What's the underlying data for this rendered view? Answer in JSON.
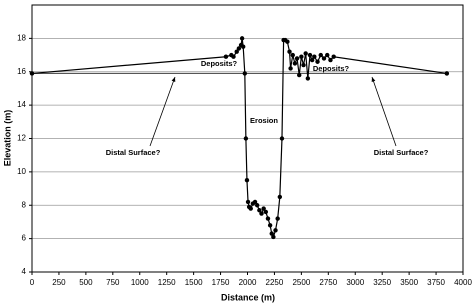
{
  "chart_data": {
    "type": "line",
    "x_label": "Distance (m)",
    "y_label": "Elevation (m)",
    "xlim": [
      0,
      4000
    ],
    "xticks": [
      0,
      250,
      500,
      750,
      1000,
      1250,
      1500,
      1750,
      2000,
      2250,
      2500,
      2750,
      3000,
      3250,
      3500,
      3750,
      4000
    ],
    "ylim": [
      4,
      20
    ],
    "yticks": [
      4,
      6,
      8,
      10,
      12,
      14,
      16,
      18
    ],
    "grid": true,
    "series": [
      {
        "color": "#000000",
        "x": [
          0,
          1800,
          1850,
          1870,
          1900,
          1920,
          1940,
          1950,
          1960,
          1975,
          1985,
          1995,
          2005,
          2015,
          2030,
          2050,
          2070,
          2090,
          2110,
          2130,
          2150,
          2170,
          2190,
          2210,
          2225,
          2240,
          2260,
          2280,
          2300,
          2320,
          2335,
          2350,
          2370,
          2390,
          2400,
          2420,
          2440,
          2460,
          2480,
          2500,
          2520,
          2540,
          2560,
          2580,
          2600,
          2620,
          2650,
          2680,
          2710,
          2740,
          2770,
          2800,
          3850
        ],
        "values": [
          15.9,
          16.9,
          17.0,
          16.9,
          17.2,
          17.4,
          17.6,
          18.0,
          17.5,
          15.9,
          12.0,
          9.5,
          8.2,
          7.9,
          7.8,
          8.1,
          8.2,
          8.0,
          7.7,
          7.5,
          7.8,
          7.6,
          7.2,
          6.8,
          6.3,
          6.1,
          6.5,
          7.2,
          8.5,
          12.0,
          17.9,
          17.9,
          17.8,
          17.2,
          16.2,
          17.0,
          16.5,
          16.8,
          15.8,
          16.9,
          16.4,
          17.1,
          15.6,
          17.0,
          16.7,
          16.9,
          16.6,
          17.0,
          16.8,
          17.0,
          16.7,
          16.9,
          15.9
        ]
      },
      {
        "color": "#555555",
        "x": [
          0,
          3850
        ],
        "values": [
          15.9,
          15.9
        ]
      }
    ],
    "annotations": [
      "Deposits?",
      "Deposits?",
      "Erosion",
      "Distal Surface?",
      "Distal Surface?"
    ]
  }
}
